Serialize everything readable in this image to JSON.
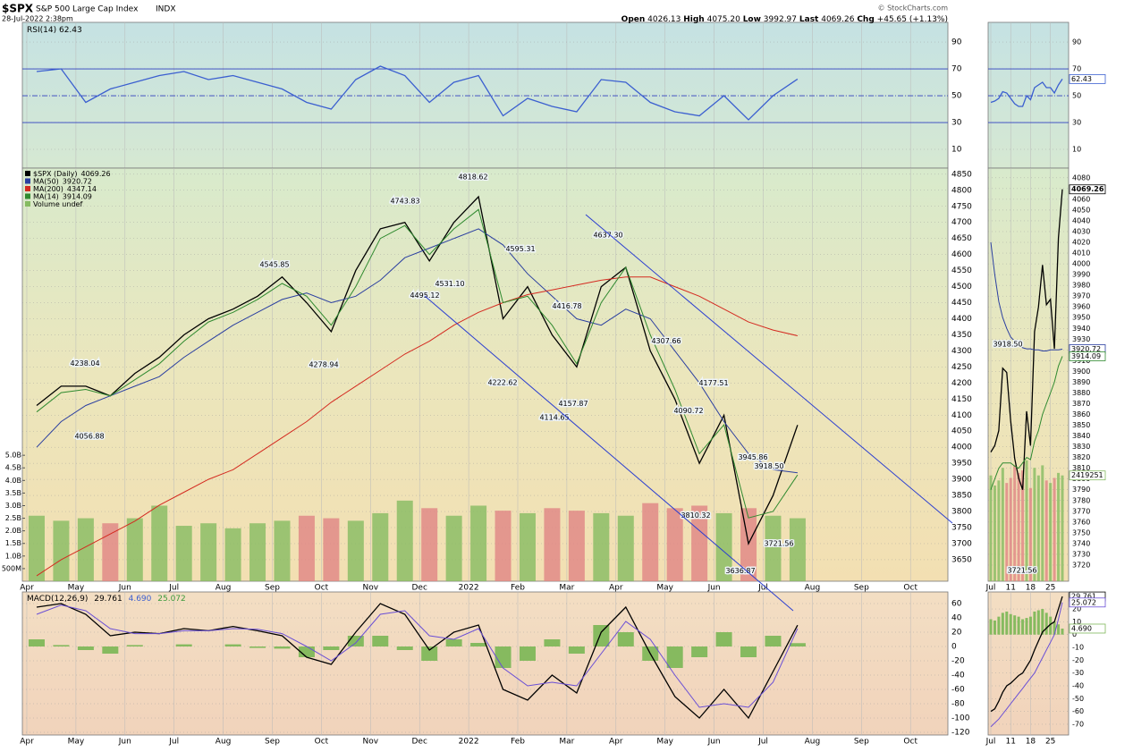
{
  "header": {
    "symbol": "$SPX",
    "name": "S&P 500 Large Cap Index",
    "exchange": "INDX",
    "timestamp": "28-Jul-2022 2:38pm",
    "credit": "© StockCharts.com",
    "quote": [
      {
        "label": "Open",
        "value": "4026.13"
      },
      {
        "label": "High",
        "value": "4075.20"
      },
      {
        "label": "Low",
        "value": "3992.97"
      },
      {
        "label": "Last",
        "value": "4069.26"
      },
      {
        "label": "Chg",
        "value": "+45.65 (+1.13%)"
      }
    ]
  },
  "chart_data": [
    {
      "type": "line",
      "title": "RSI(14)",
      "ylim": [
        -4,
        104.7
      ],
      "yticks": [
        10,
        30,
        50,
        70,
        90
      ],
      "ref_lines": [
        70,
        50,
        30
      ],
      "series": [
        {
          "color": "#3b5fd0",
          "values": [
            68,
            70,
            45,
            55,
            60,
            65,
            68,
            62,
            65,
            60,
            55,
            45,
            40,
            62,
            72,
            65,
            45,
            60,
            65,
            35,
            48,
            42,
            38,
            62,
            60,
            45,
            38,
            35,
            50,
            32,
            50,
            62.43
          ]
        }
      ]
    },
    {
      "type": "line",
      "ylim": [
        3583,
        4869
      ],
      "yticks": [
        3650,
        3700,
        3750,
        3800,
        3850,
        3900,
        3950,
        4000,
        4050,
        4100,
        4150,
        4200,
        4250,
        4300,
        4350,
        4400,
        4450,
        4500,
        4550,
        4600,
        4650,
        4700,
        4750,
        4800,
        4850
      ],
      "y2lim": [
        0,
        16.4
      ],
      "y2ticks": [
        {
          "value": 0.5,
          "label": "500M"
        },
        {
          "value": 1,
          "label": "1.0B"
        },
        {
          "value": 1.5,
          "label": "1.5B"
        },
        {
          "value": 2,
          "label": "2.0B"
        },
        {
          "value": 2.5,
          "label": "2.5B"
        },
        {
          "value": 3,
          "label": "3.0B"
        },
        {
          "value": 3.5,
          "label": "3.5B"
        },
        {
          "value": 4,
          "label": "4.0B"
        },
        {
          "value": 4.5,
          "label": "4.5B"
        },
        {
          "value": 5,
          "label": "5.0B"
        }
      ],
      "x_tick_labels": [
        "Apr",
        "May",
        "Jun",
        "Jul",
        "Aug",
        "Sep",
        "Oct",
        "Nov",
        "Dec",
        "2022",
        "Feb",
        "Mar",
        "Apr",
        "May",
        "Jun",
        "Jul",
        "Aug",
        "Sep",
        "Oct"
      ],
      "legend": "upper left",
      "series": [
        {
          "name": "$SPX (Daily)",
          "color": "#000000",
          "values": [
            4130,
            4190,
            4190,
            4160,
            4230,
            4280,
            4350,
            4400,
            4430,
            4470,
            4530,
            4450,
            4360,
            4550,
            4680,
            4700,
            4580,
            4700,
            4780,
            4400,
            4500,
            4350,
            4250,
            4500,
            4560,
            4300,
            4150,
            3950,
            4100,
            3700,
            3850,
            4069.26
          ]
        },
        {
          "name": "MA(50)",
          "color": "#2b3fa0",
          "values": [
            4000,
            4080,
            4130,
            4160,
            4190,
            4220,
            4280,
            4330,
            4380,
            4420,
            4460,
            4480,
            4450,
            4470,
            4520,
            4590,
            4620,
            4650,
            4680,
            4630,
            4540,
            4470,
            4400,
            4380,
            4430,
            4400,
            4300,
            4200,
            4080,
            3980,
            3930,
            3920.72
          ]
        },
        {
          "name": "MA(200)",
          "color": "#d42a20",
          "values": [
            3600,
            3650,
            3690,
            3730,
            3770,
            3820,
            3860,
            3900,
            3930,
            3980,
            4030,
            4080,
            4140,
            4190,
            4240,
            4290,
            4330,
            4380,
            4420,
            4450,
            4475,
            4490,
            4505,
            4520,
            4530,
            4530,
            4500,
            4470,
            4430,
            4390,
            4365,
            4347.14
          ]
        },
        {
          "name": "MA(14)",
          "color": "#2f8a2f",
          "values": [
            4110,
            4170,
            4180,
            4160,
            4210,
            4260,
            4330,
            4390,
            4420,
            4460,
            4510,
            4470,
            4380,
            4500,
            4650,
            4690,
            4600,
            4680,
            4740,
            4450,
            4470,
            4380,
            4260,
            4450,
            4560,
            4350,
            4180,
            3980,
            4070,
            3780,
            3800,
            3914.09
          ]
        },
        {
          "name": "Volume undef",
          "type": "bar",
          "axis": "y2",
          "color": "#86bb62",
          "down_color": "#e08585",
          "values": [
            2.6,
            2.4,
            2.5,
            2.3,
            2.5,
            3.0,
            2.2,
            2.3,
            2.1,
            2.3,
            2.4,
            2.6,
            2.5,
            2.4,
            2.7,
            3.2,
            2.9,
            2.6,
            3.0,
            2.8,
            2.7,
            2.9,
            2.8,
            2.7,
            2.6,
            3.1,
            2.9,
            3.0,
            2.7,
            2.9,
            2.6,
            2.5
          ]
        }
      ],
      "annotations": [
        {
          "value": 4238.04,
          "label": "4238.04"
        },
        {
          "value": 4056.88,
          "label": "4056.88"
        },
        {
          "value": 4545.85,
          "label": "4545.85"
        },
        {
          "value": 4278.94,
          "label": "4278.94"
        },
        {
          "value": 4743.83,
          "label": "4743.83"
        },
        {
          "value": 4495.12,
          "label": "4495.12"
        },
        {
          "value": 4531.1,
          "label": "4531.10"
        },
        {
          "value": 4818.62,
          "label": "4818.62"
        },
        {
          "value": 4595.31,
          "label": "4595.31"
        },
        {
          "value": 4222.62,
          "label": "4222.62"
        },
        {
          "value": 4416.78,
          "label": "4416.78"
        },
        {
          "value": 4157.87,
          "label": "4157.87"
        },
        {
          "value": 4114.65,
          "label": "4114.65"
        },
        {
          "value": 4637.3,
          "label": "4637.30"
        },
        {
          "value": 4307.66,
          "label": "4307.66"
        },
        {
          "value": 4090.72,
          "label": "4090.72"
        },
        {
          "value": 4177.51,
          "label": "4177.51"
        },
        {
          "value": 3945.86,
          "label": "3945.86"
        },
        {
          "value": 3918.5,
          "label": "3918.50"
        },
        {
          "value": 3810.32,
          "label": "3810.32"
        },
        {
          "value": 3721.56,
          "label": "3721.56"
        },
        {
          "value": 3636.87,
          "label": "3636.87"
        }
      ]
    },
    {
      "type": "line",
      "title": "MACD(12,26,9)",
      "ylim": [
        -123.75,
        76.25
      ],
      "yticks": [
        -120,
        -100,
        -80,
        -60,
        -40,
        -20,
        0,
        20,
        40,
        60
      ],
      "x_tick_labels": [
        "Apr",
        "May",
        "Jun",
        "Jul",
        "Aug",
        "Sep",
        "Oct",
        "Nov",
        "Dec",
        "2022",
        "Feb",
        "Mar",
        "Apr",
        "May",
        "Jun",
        "Jul",
        "Aug",
        "Sep",
        "Oct"
      ],
      "series": [
        {
          "color": "#000000",
          "values": [
            55,
            60,
            45,
            15,
            20,
            18,
            25,
            22,
            28,
            22,
            15,
            -15,
            -25,
            20,
            60,
            45,
            -5,
            20,
            30,
            -60,
            -75,
            -40,
            -65,
            20,
            55,
            -10,
            -70,
            -100,
            -60,
            -100,
            -35,
            29.761
          ]
        },
        {
          "type": "bar",
          "color": "#7fb85a",
          "values": [
            10,
            2,
            -5,
            -10,
            2,
            0,
            3,
            0,
            3,
            -2,
            -3,
            -15,
            -5,
            15,
            15,
            -5,
            -20,
            10,
            5,
            -30,
            -20,
            10,
            -10,
            30,
            20,
            -20,
            -30,
            -15,
            20,
            -15,
            15,
            4.69
          ],
          "value_labels": [
            null,
            null,
            null,
            null,
            null,
            null,
            null,
            null,
            null,
            null,
            null,
            null,
            null,
            null,
            null,
            null,
            null,
            null,
            null,
            null,
            null,
            null,
            null,
            null,
            null,
            null,
            null,
            null,
            null,
            null,
            null,
            "4.690"
          ]
        },
        {
          "color": "#6a4fd6",
          "values": [
            45,
            58,
            50,
            25,
            18,
            18,
            22,
            22,
            25,
            24,
            18,
            0,
            -20,
            5,
            45,
            50,
            15,
            10,
            25,
            -30,
            -55,
            -50,
            -55,
            -10,
            35,
            10,
            -40,
            -85,
            -80,
            -85,
            -50,
            25.072
          ]
        }
      ]
    },
    {
      "type": "line",
      "ylim": [
        -4,
        104.7
      ],
      "yticks": [
        10,
        30,
        50,
        70,
        90
      ],
      "ref_lines": [
        70,
        50,
        30
      ],
      "series": [
        {
          "color": "#3b5fd0",
          "values": [
            45,
            46,
            48,
            53,
            52,
            48,
            44,
            42,
            42,
            50,
            47,
            56,
            58,
            60,
            56,
            56,
            52,
            58,
            62.43
          ]
        }
      ]
    },
    {
      "type": "line",
      "ylim": [
        3705,
        4089
      ],
      "yticks": [
        3720,
        3730,
        3740,
        3750,
        3760,
        3770,
        3780,
        3790,
        3800,
        3810,
        3820,
        3830,
        3840,
        3850,
        3860,
        3870,
        3880,
        3890,
        3900,
        3910,
        3920,
        3930,
        3940,
        3950,
        3960,
        3970,
        3980,
        3990,
        4000,
        4010,
        4020,
        4030,
        4040,
        4050,
        4060,
        4070,
        4080
      ],
      "y2lim": [
        0,
        16.4
      ],
      "categories": [
        "Jul",
        null,
        null,
        null,
        null,
        "11",
        null,
        null,
        null,
        null,
        "18",
        null,
        null,
        null,
        null,
        "25",
        null,
        null,
        null
      ],
      "series": [
        {
          "color": "#000000",
          "values": [
            3825,
            3831,
            3845,
            3903,
            3899,
            3854,
            3819,
            3801,
            3790,
            3863,
            3831,
            3937,
            3960,
            3999,
            3962,
            3967,
            3921,
            4024,
            4069.26
          ]
        },
        {
          "color": "#2b3fa0",
          "values": [
            4020,
            3990,
            3965,
            3950,
            3940,
            3932,
            3928,
            3925,
            3922,
            3921,
            3921,
            3920,
            3920,
            3919,
            3919,
            3920,
            3920,
            3920,
            3920.72
          ]
        },
        {
          "color": "#2f8a2f",
          "values": [
            3790,
            3800,
            3810,
            3815,
            3815,
            3815,
            3812,
            3810,
            3815,
            3820,
            3818,
            3835,
            3845,
            3860,
            3870,
            3880,
            3890,
            3905,
            3914.09
          ]
        },
        {
          "type": "bar",
          "axis": "y2",
          "color": "#86bb62",
          "down_color": "#e08585",
          "values": [
            4.2,
            3.8,
            4.0,
            4.5,
            3.9,
            4.1,
            4.6,
            4.3,
            4.4,
            4.8,
            3.7,
            4.5,
            4.2,
            4.6,
            4.0,
            3.9,
            4.1,
            4.3,
            4.2
          ]
        }
      ],
      "annotations": [
        {
          "value": 3918.5,
          "label": "3918.50"
        },
        {
          "value": 3721.56,
          "label": "3721.56"
        }
      ],
      "volume_readout": "2419251"
    },
    {
      "type": "line",
      "ylim": [
        -78.4,
        33.3
      ],
      "yticks": [
        -70,
        -60,
        -50,
        -40,
        -30,
        -20,
        -10,
        0,
        10,
        20
      ],
      "categories": [
        "Jul",
        null,
        null,
        null,
        null,
        "11",
        null,
        null,
        null,
        null,
        "18",
        null,
        null,
        null,
        null,
        "25",
        null,
        null,
        null
      ],
      "series": [
        {
          "color": "#000000",
          "values": [
            -60,
            -58,
            -52,
            -45,
            -40,
            -38,
            -35,
            -32,
            -30,
            -25,
            -20,
            -12,
            -5,
            2,
            5,
            8,
            10,
            20,
            29.761
          ]
        },
        {
          "type": "bar",
          "color": "#7fb85a",
          "values": [
            12,
            11,
            14,
            17,
            18,
            16,
            15,
            14,
            12,
            13,
            14,
            18,
            19,
            20,
            17,
            14,
            10,
            8,
            4.69
          ],
          "value_labels": [
            null,
            null,
            null,
            null,
            null,
            null,
            null,
            null,
            null,
            null,
            null,
            null,
            null,
            null,
            null,
            null,
            null,
            null,
            "4.690"
          ]
        },
        {
          "color": "#6a4fd6",
          "values": [
            -72,
            -69,
            -66,
            -62,
            -58,
            -54,
            -50,
            -46,
            -42,
            -38,
            -34,
            -30,
            -24,
            -18,
            -12,
            -6,
            0,
            12,
            25.072
          ]
        }
      ]
    }
  ]
}
